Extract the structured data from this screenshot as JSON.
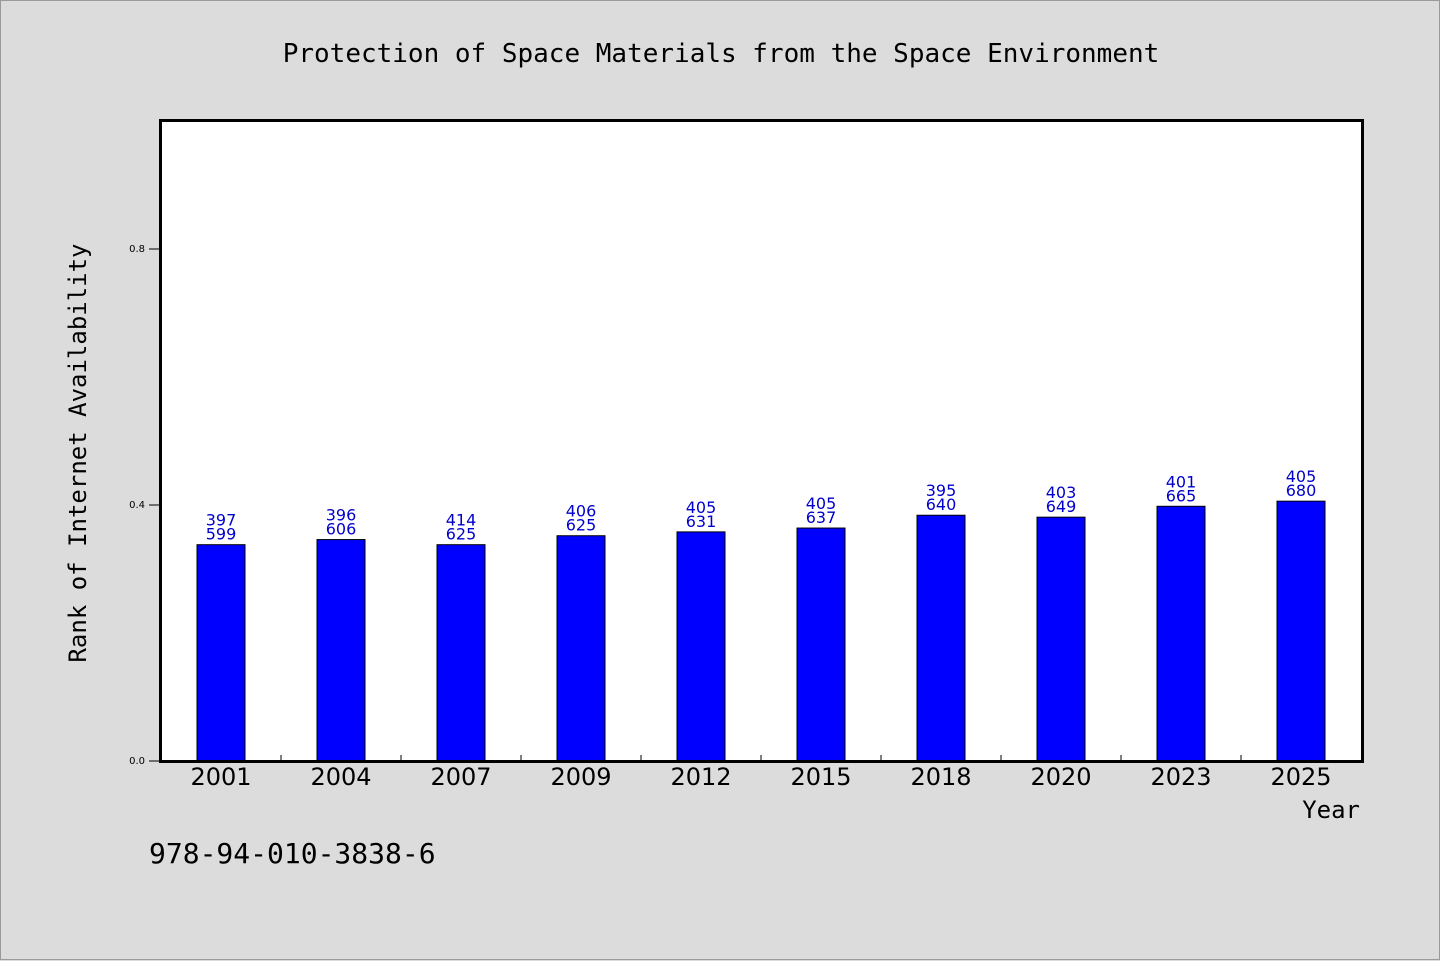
{
  "chart_data": {
    "type": "bar",
    "title": "Protection of Space Materials from the Space Environment",
    "xlabel": "Year",
    "ylabel": "Rank of Internet Availability",
    "categories": [
      "2001",
      "2004",
      "2007",
      "2009",
      "2012",
      "2015",
      "2018",
      "2020",
      "2023",
      "2025"
    ],
    "values": [
      0.338,
      0.346,
      0.338,
      0.352,
      0.358,
      0.364,
      0.384,
      0.381,
      0.398,
      0.406
    ],
    "data_labels_top": [
      "397",
      "396",
      "414",
      "406",
      "405",
      "405",
      "395",
      "403",
      "401",
      "405"
    ],
    "data_labels_bottom": [
      "599",
      "606",
      "625",
      "625",
      "631",
      "637",
      "640",
      "649",
      "665",
      "680"
    ],
    "yticks": [
      0.0,
      0.4,
      0.8
    ],
    "ytick_labels": [
      "0.0",
      "0.4",
      "0.8"
    ],
    "ylim": [
      0,
      1.0
    ],
    "grid": false,
    "bar_color": "#0000ff",
    "label_color": "#0000cc",
    "plot_background": "#ffffff",
    "page_background": "#dcdcdc"
  },
  "footer": {
    "isbn": "978-94-010-3838-6"
  }
}
